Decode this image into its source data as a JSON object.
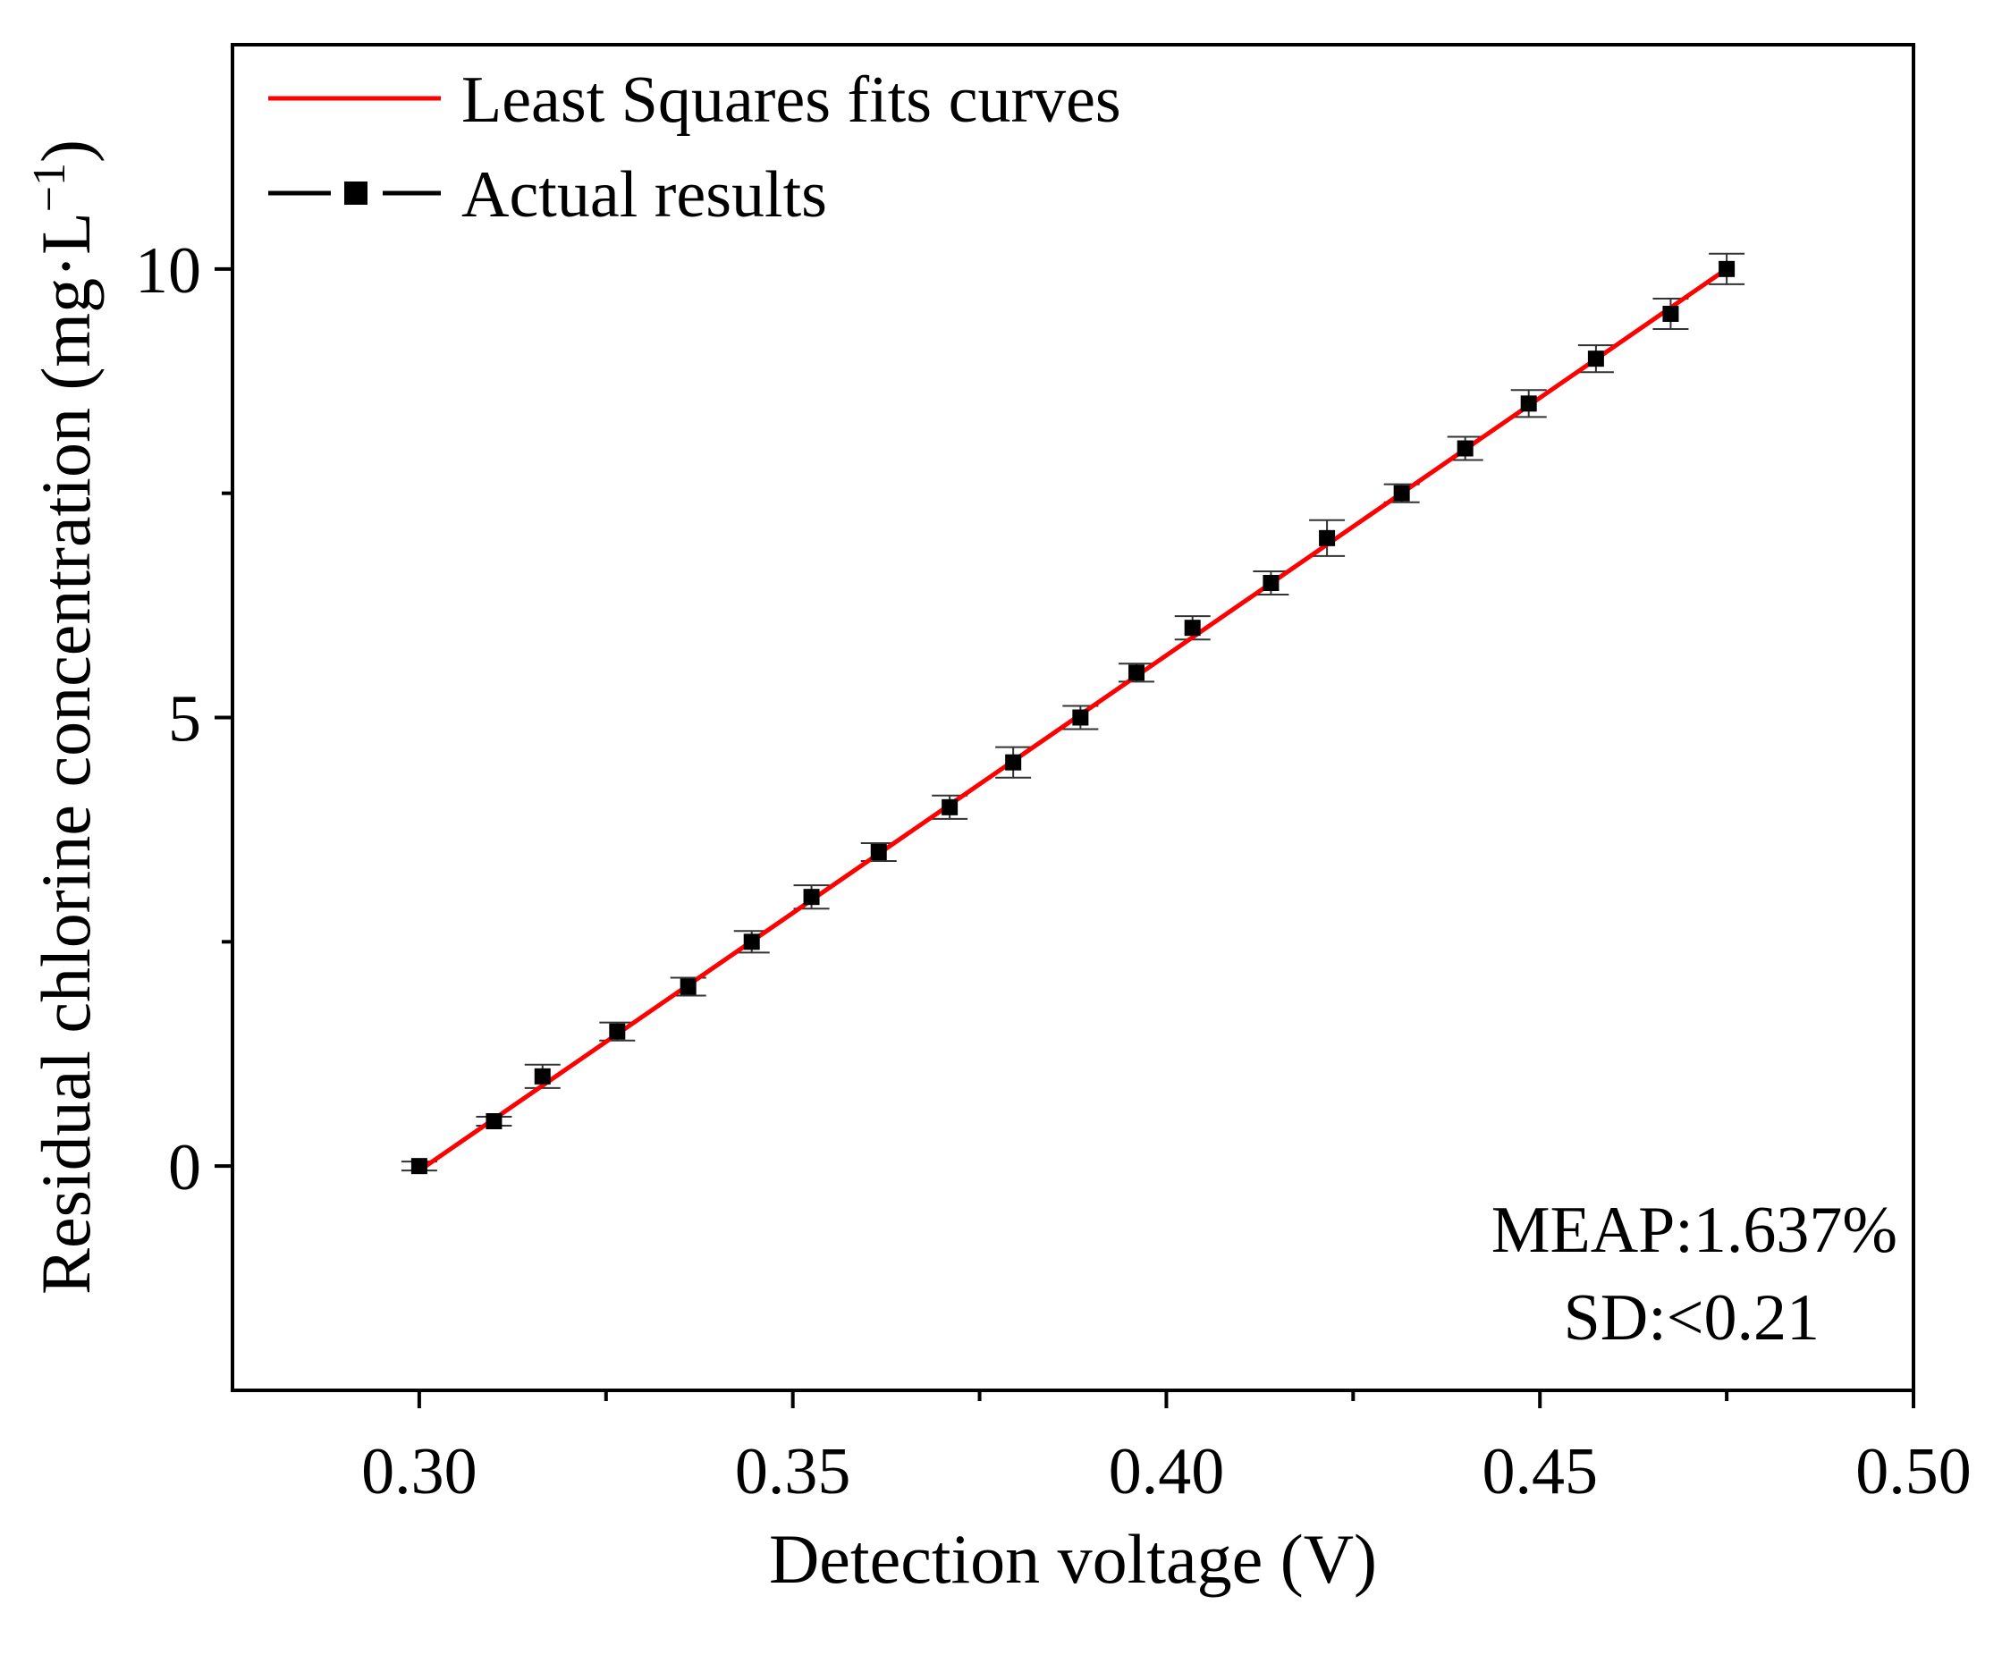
{
  "chart_data": {
    "type": "line",
    "title": "",
    "xlabel": "Detection voltage (V)",
    "ylabel_main": "Residual chlorine concentration (mg·L",
    "ylabel_sup": "−1",
    "ylabel_close": ")",
    "xlim": [
      0.275,
      0.5
    ],
    "ylim": [
      -2.5,
      12.5
    ],
    "x_ticks_major": [
      0.3,
      0.35,
      0.4,
      0.45,
      0.5
    ],
    "x_tick_labels": [
      "0.30",
      "0.35",
      "0.40",
      "0.45",
      "0.50"
    ],
    "x_ticks_minor": [
      0.325,
      0.375,
      0.425,
      0.475
    ],
    "y_ticks_major": [
      0,
      5,
      10
    ],
    "y_tick_labels": [
      "0",
      "5",
      "10"
    ],
    "y_ticks_minor": [
      2.5,
      7.5
    ],
    "grid": false,
    "legend_position": "top-left",
    "series": [
      {
        "name": "Least Squares fits curves",
        "kind": "line",
        "color": "#ff0000",
        "x": [
          0.3,
          0.475
        ],
        "y": [
          -0.05,
          10.0
        ]
      },
      {
        "name": "Actual results",
        "kind": "points-with-error-bars",
        "color": "#000000",
        "marker": "square",
        "x": [
          0.3,
          0.31,
          0.3165,
          0.3265,
          0.336,
          0.3445,
          0.3525,
          0.3615,
          0.371,
          0.3795,
          0.3885,
          0.396,
          0.4035,
          0.414,
          0.4215,
          0.4315,
          0.44,
          0.4485,
          0.4575,
          0.4675,
          0.475
        ],
        "y": [
          0,
          0.5,
          1.0,
          1.5,
          2.0,
          2.5,
          3.0,
          3.5,
          4.0,
          4.5,
          5.0,
          5.5,
          6.0,
          6.5,
          7.0,
          7.5,
          8.0,
          8.5,
          9.0,
          9.5,
          10.0
        ],
        "error": [
          0.05,
          0.05,
          0.13,
          0.1,
          0.1,
          0.12,
          0.13,
          0.1,
          0.13,
          0.17,
          0.13,
          0.1,
          0.13,
          0.13,
          0.2,
          0.1,
          0.13,
          0.15,
          0.15,
          0.17,
          0.17
        ]
      }
    ],
    "annotations": [
      "MEAP:1.637%",
      "SD:<0.21"
    ]
  }
}
